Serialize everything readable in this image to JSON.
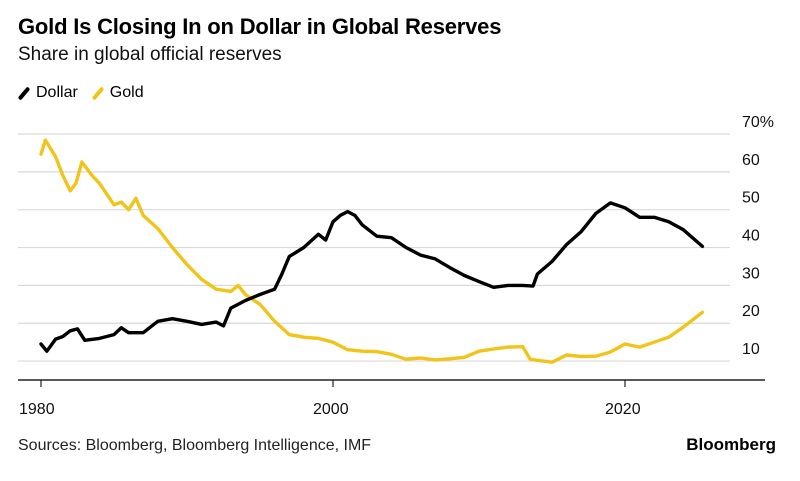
{
  "header": {
    "title": "Gold Is Closing In on Dollar in Global Reserves",
    "subtitle": "Share in global official reserves"
  },
  "footer": {
    "source": "Sources: Bloomberg, Bloomberg Intelligence, IMF",
    "brand": "Bloomberg"
  },
  "chart_data": {
    "type": "line",
    "title": "Gold Is Closing In on Dollar in Global Reserves",
    "subtitle": "Share in global official reserves",
    "xlabel": "",
    "ylabel": "",
    "xlim": [
      1979.5,
      2029
    ],
    "ylim": [
      5,
      70
    ],
    "x_ticks": [
      1980,
      2000,
      2020
    ],
    "x_tick_labels": [
      "1980",
      "2000",
      "2020"
    ],
    "y_ticks": [
      10,
      20,
      30,
      40,
      50,
      60,
      70
    ],
    "y_tick_labels": [
      "10",
      "20",
      "30",
      "40",
      "50",
      "60",
      "70%"
    ],
    "y_axis_side": "right",
    "grid": true,
    "legend": "top-left",
    "series": [
      {
        "name": "Dollar",
        "color": "#000000",
        "x": [
          1980,
          1980.4,
          1981,
          1981.5,
          1982,
          1982.5,
          1983,
          1984,
          1985,
          1985.5,
          1986,
          1987,
          1988,
          1989,
          1990,
          1991,
          1992,
          1992.5,
          1993,
          1994,
          1995,
          1996,
          1996.5,
          1997,
          1998,
          1999,
          1999.5,
          2000,
          2000.5,
          2001,
          2001.5,
          2002,
          2003,
          2004,
          2005,
          2006,
          2007,
          2008,
          2009,
          2010,
          2011,
          2012,
          2013,
          2013.7,
          2014,
          2015,
          2016,
          2017,
          2018,
          2019,
          2020,
          2021,
          2022,
          2023,
          2024,
          2025.3
        ],
        "values": [
          14.5,
          12.6,
          15.8,
          16.5,
          18.0,
          18.5,
          15.5,
          16.0,
          17.0,
          18.8,
          17.5,
          17.5,
          20.5,
          21.2,
          20.5,
          19.7,
          20.3,
          19.3,
          24.0,
          26.0,
          27.6,
          29.0,
          33.0,
          37.6,
          40.0,
          43.5,
          42.0,
          46.8,
          48.5,
          49.5,
          48.5,
          46.0,
          43.0,
          42.6,
          40.0,
          38.0,
          37.0,
          34.7,
          32.6,
          31.0,
          29.5,
          30.0,
          30.0,
          29.8,
          33.0,
          36.3,
          40.8,
          44.2,
          49.0,
          51.8,
          50.5,
          48.0,
          48.0,
          46.8,
          44.7,
          40.3
        ]
      },
      {
        "name": "Gold",
        "color": "#F0C419",
        "x": [
          1980,
          1980.3,
          1981,
          1981.5,
          1982,
          1982.4,
          1982.8,
          1983.5,
          1984,
          1985,
          1985.5,
          1986,
          1986.5,
          1987,
          1988,
          1989,
          1990,
          1991,
          1992,
          1993,
          1993.5,
          1994,
          1995,
          1996,
          1997,
          1998,
          1999,
          2000,
          2001,
          2002,
          2003,
          2004,
          2005,
          2006,
          2007,
          2008,
          2009,
          2010,
          2011,
          2012,
          2013,
          2013.5,
          2014,
          2015,
          2016,
          2017,
          2018,
          2019,
          2020,
          2021,
          2022,
          2023,
          2024,
          2025.3
        ],
        "values": [
          64.7,
          68.4,
          64.0,
          59.0,
          55.0,
          57.0,
          62.6,
          59.0,
          57.0,
          51.3,
          52.0,
          50.0,
          53.0,
          48.5,
          45.0,
          40.0,
          35.5,
          31.6,
          29.0,
          28.4,
          30.0,
          27.6,
          25.0,
          20.5,
          17.0,
          16.3,
          16.0,
          15.0,
          13.0,
          12.6,
          12.5,
          11.8,
          10.5,
          10.8,
          10.3,
          10.6,
          11.0,
          12.6,
          13.2,
          13.7,
          13.8,
          10.5,
          10.2,
          9.7,
          11.6,
          11.2,
          11.3,
          12.4,
          14.5,
          13.7,
          15.0,
          16.3,
          19.0,
          22.9
        ]
      }
    ]
  }
}
